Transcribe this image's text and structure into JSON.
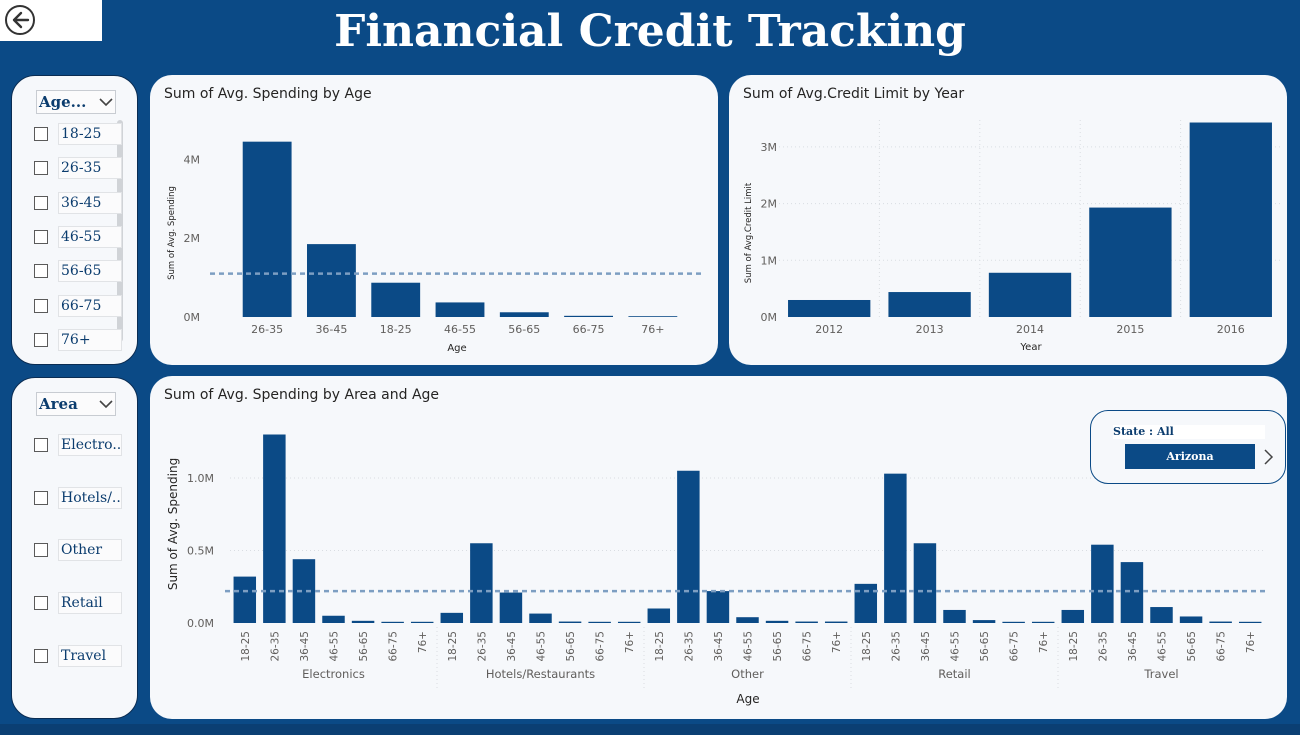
{
  "header": {
    "title": "Financial Credit Tracking",
    "back_icon": "back-arrow-icon"
  },
  "colors": {
    "bar": "#0b4a86",
    "background": "#0b4a86",
    "avg_line": "#7d9ec2",
    "grid": "#d9dde2"
  },
  "age_slicer": {
    "header": "Age...",
    "items": [
      "18-25",
      "26-35",
      "36-45",
      "46-55",
      "56-65",
      "66-75",
      "76+"
    ]
  },
  "area_slicer": {
    "header": "Area",
    "items": [
      "Electro...",
      "Hotels/...",
      "Other",
      "Retail",
      "Travel"
    ]
  },
  "state_slicer": {
    "label": "State : All",
    "selected": "Arizona"
  },
  "chart_data": [
    {
      "type": "bar",
      "title": "Sum of Avg. Spending by Age",
      "xlabel": "Age",
      "ylabel": "Sum of Avg. Spending",
      "categories": [
        "26-35",
        "36-45",
        "18-25",
        "46-55",
        "56-65",
        "66-75",
        "76+"
      ],
      "values": [
        4.45,
        1.85,
        0.87,
        0.37,
        0.12,
        0.03,
        0.02
      ],
      "unit": "M",
      "yticks": [
        "0M",
        "2M",
        "4M"
      ],
      "ylim": [
        0,
        5.0
      ],
      "average_line": 1.1,
      "grid": false
    },
    {
      "type": "bar",
      "title": "Sum of Avg.Credit Limit by Year",
      "xlabel": "Year",
      "ylabel": "Sum of Avg.Credit Limit",
      "categories": [
        "2012",
        "2013",
        "2014",
        "2015",
        "2016"
      ],
      "values": [
        0.3,
        0.44,
        0.78,
        1.93,
        3.43
      ],
      "unit": "M",
      "yticks": [
        "0M",
        "1M",
        "2M",
        "3M"
      ],
      "ylim": [
        0,
        3.5
      ],
      "grid": true
    },
    {
      "type": "bar",
      "title": "Sum of Avg. Spending by Area and Age",
      "xlabel": "Age",
      "ylabel": "Sum of Avg. Spending",
      "groups": [
        "Electronics",
        "Hotels/Restaurants",
        "Other",
        "Retail",
        "Travel"
      ],
      "categories": [
        "18-25",
        "26-35",
        "36-45",
        "46-55",
        "56-65",
        "66-75",
        "76+"
      ],
      "series": [
        {
          "values": [
            0.32,
            1.3,
            0.44,
            0.05,
            0.015,
            0.005,
            0.003
          ]
        },
        {
          "values": [
            0.07,
            0.55,
            0.21,
            0.065,
            0.01,
            0.004,
            0.003
          ]
        },
        {
          "values": [
            0.1,
            1.05,
            0.22,
            0.04,
            0.015,
            0.01,
            0.01
          ]
        },
        {
          "values": [
            0.27,
            1.03,
            0.55,
            0.09,
            0.02,
            0.005,
            0.003
          ]
        },
        {
          "values": [
            0.09,
            0.54,
            0.42,
            0.11,
            0.045,
            0.01,
            0.005
          ]
        }
      ],
      "unit": "M",
      "yticks": [
        "0.0M",
        "0.5M",
        "1.0M"
      ],
      "ylim": [
        0,
        1.32
      ],
      "average_line": 0.22,
      "grid": true
    }
  ]
}
